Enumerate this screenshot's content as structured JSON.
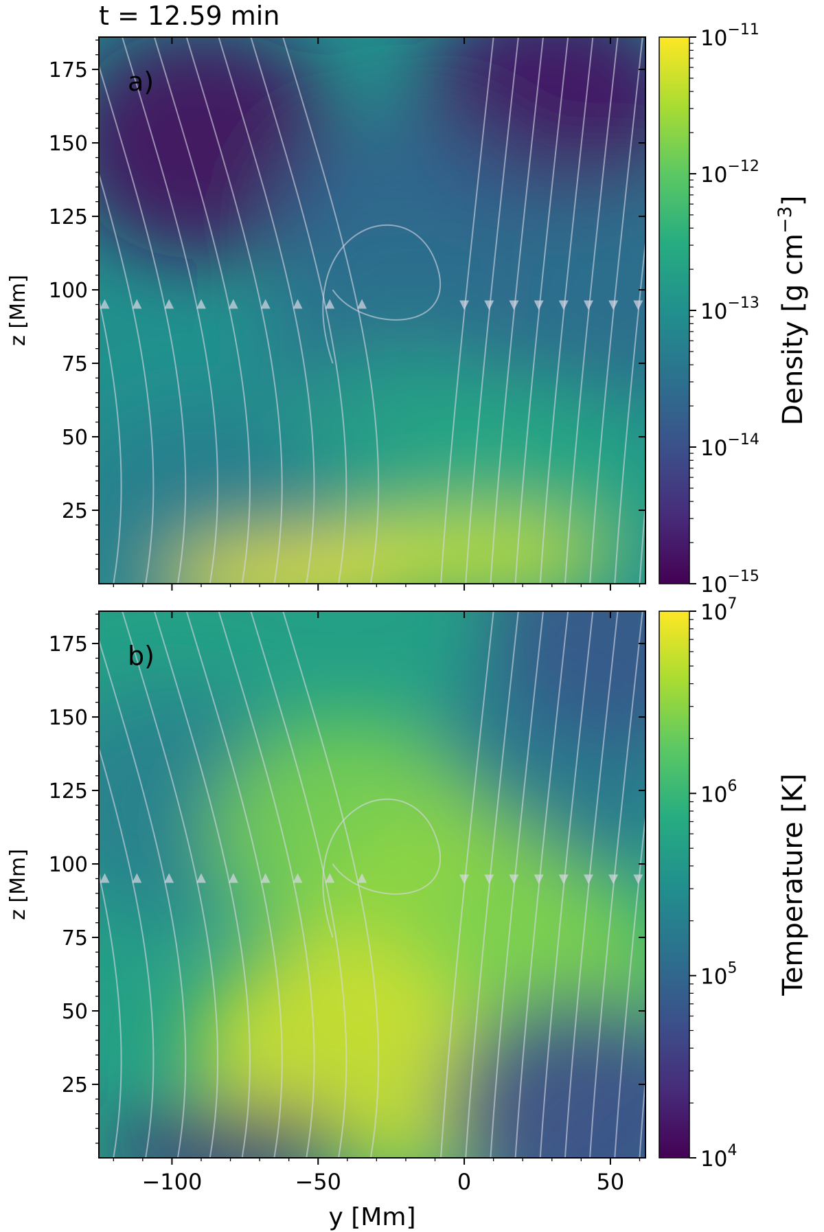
{
  "figure": {
    "title": "t = 12.59 min"
  },
  "colormap": [
    "#440154",
    "#472c7a",
    "#3b518b",
    "#2c718e",
    "#21908d",
    "#27ad81",
    "#5cc863",
    "#aadc32",
    "#fde725"
  ],
  "streamline_color": "#d9d9e6",
  "chart_data": [
    {
      "type": "heatmap",
      "panel_label": "a)",
      "xlabel": "y [Mm]",
      "ylabel": "z [Mm]",
      "xlim": [
        -125,
        62
      ],
      "ylim": [
        0,
        186
      ],
      "xticks": [
        -100,
        -50,
        0,
        50
      ],
      "xtick_labels": [
        "−100",
        "−50",
        "0",
        "50"
      ],
      "yticks": [
        25,
        50,
        75,
        100,
        125,
        150,
        175
      ],
      "ytick_labels": [
        "25",
        "50",
        "75",
        "100",
        "125",
        "150",
        "175"
      ],
      "colorbar": {
        "label": "Density [g cm",
        "label_sup": "−3",
        "label_end": "]",
        "scale": "log",
        "range": [
          1e-15,
          1e-11
        ],
        "tick_labels": [
          {
            "base": "10",
            "exp": "−15"
          },
          {
            "base": "10",
            "exp": "−14"
          },
          {
            "base": "10",
            "exp": "−13"
          },
          {
            "base": "10",
            "exp": "−12"
          },
          {
            "base": "10",
            "exp": "−11"
          }
        ]
      },
      "regions": [
        {
          "y": -90,
          "z": 150,
          "log_value": -14.9
        },
        {
          "y": 30,
          "z": 160,
          "log_value": -14.8
        },
        {
          "y": -20,
          "z": 120,
          "log_value": -13.7
        },
        {
          "y": -20,
          "z": 80,
          "log_value": -13.5
        },
        {
          "y": 50,
          "z": 100,
          "log_value": -13.6
        },
        {
          "y": -20,
          "z": 40,
          "log_value": -12.7
        },
        {
          "y": 20,
          "z": 30,
          "log_value": -12.6
        },
        {
          "y": -90,
          "z": 20,
          "log_value": -13.3
        },
        {
          "y": -12,
          "z": 8,
          "log_value": -11.3
        },
        {
          "y": 8,
          "z": 10,
          "log_value": -11.4
        },
        {
          "y": -60,
          "z": 2,
          "log_value": -11.1
        }
      ]
    },
    {
      "type": "heatmap",
      "panel_label": "b)",
      "xlabel": "y [Mm]",
      "ylabel": "z [Mm]",
      "xlim": [
        -125,
        62
      ],
      "ylim": [
        0,
        186
      ],
      "xticks": [
        -100,
        -50,
        0,
        50
      ],
      "xtick_labels": [
        "−100",
        "−50",
        "0",
        "50"
      ],
      "yticks": [
        25,
        50,
        75,
        100,
        125,
        150,
        175
      ],
      "ytick_labels": [
        "25",
        "50",
        "75",
        "100",
        "125",
        "150",
        "175"
      ],
      "colorbar": {
        "label": "Temperature [K]",
        "label_sup": "",
        "label_end": "",
        "scale": "log",
        "range": [
          10000.0,
          10000000.0
        ],
        "tick_labels": [
          {
            "base": "10",
            "exp": "4"
          },
          {
            "base": "10",
            "exp": "5"
          },
          {
            "base": "10",
            "exp": "6"
          },
          {
            "base": "10",
            "exp": "7"
          }
        ]
      },
      "regions": [
        {
          "y": -100,
          "z": 120,
          "log_value": 5.3
        },
        {
          "y": 30,
          "z": 130,
          "log_value": 5.2
        },
        {
          "y": 55,
          "z": 180,
          "log_value": 4.8
        },
        {
          "y": -40,
          "z": 110,
          "log_value": 6.4
        },
        {
          "y": -5,
          "z": 80,
          "log_value": 6.5
        },
        {
          "y": 25,
          "z": 60,
          "log_value": 6.4
        },
        {
          "y": -45,
          "z": 35,
          "log_value": 6.8
        },
        {
          "y": -12,
          "z": 6,
          "log_value": 6.7
        },
        {
          "y": 40,
          "z": 15,
          "log_value": 4.7
        },
        {
          "y": -80,
          "z": 3,
          "log_value": 4.3
        }
      ]
    }
  ]
}
